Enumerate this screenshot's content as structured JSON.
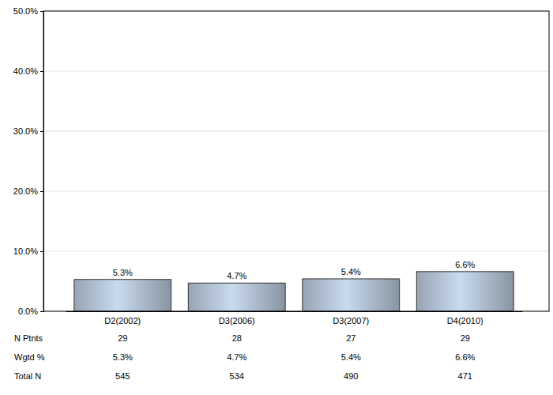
{
  "chart_data": {
    "type": "bar",
    "categories": [
      "D2(2002)",
      "D3(2006)",
      "D3(2007)",
      "D4(2010)"
    ],
    "values": [
      5.3,
      4.7,
      5.4,
      6.6
    ],
    "value_labels": [
      "5.3%",
      "4.7%",
      "5.4%",
      "6.6%"
    ],
    "data_labels": true,
    "color": "#a8b7c8",
    "ylim": [
      0,
      50
    ],
    "yticks": [
      {
        "value": 0,
        "label": "0.0%"
      },
      {
        "value": 10,
        "label": "10.0%"
      },
      {
        "value": 20,
        "label": "20.0%"
      },
      {
        "value": 30,
        "label": "30.0%"
      },
      {
        "value": 40,
        "label": "40.0%"
      },
      {
        "value": 50,
        "label": "50.0%"
      }
    ],
    "grid": true,
    "table": [
      {
        "label": "N Ptnts",
        "values": [
          29,
          28,
          27,
          29
        ]
      },
      {
        "label": "Wgtd %",
        "values": [
          "5.3%",
          "4.7%",
          "5.4%",
          "6.6%"
        ]
      },
      {
        "label": "Total N",
        "values": [
          545,
          534,
          490,
          471
        ]
      }
    ]
  }
}
